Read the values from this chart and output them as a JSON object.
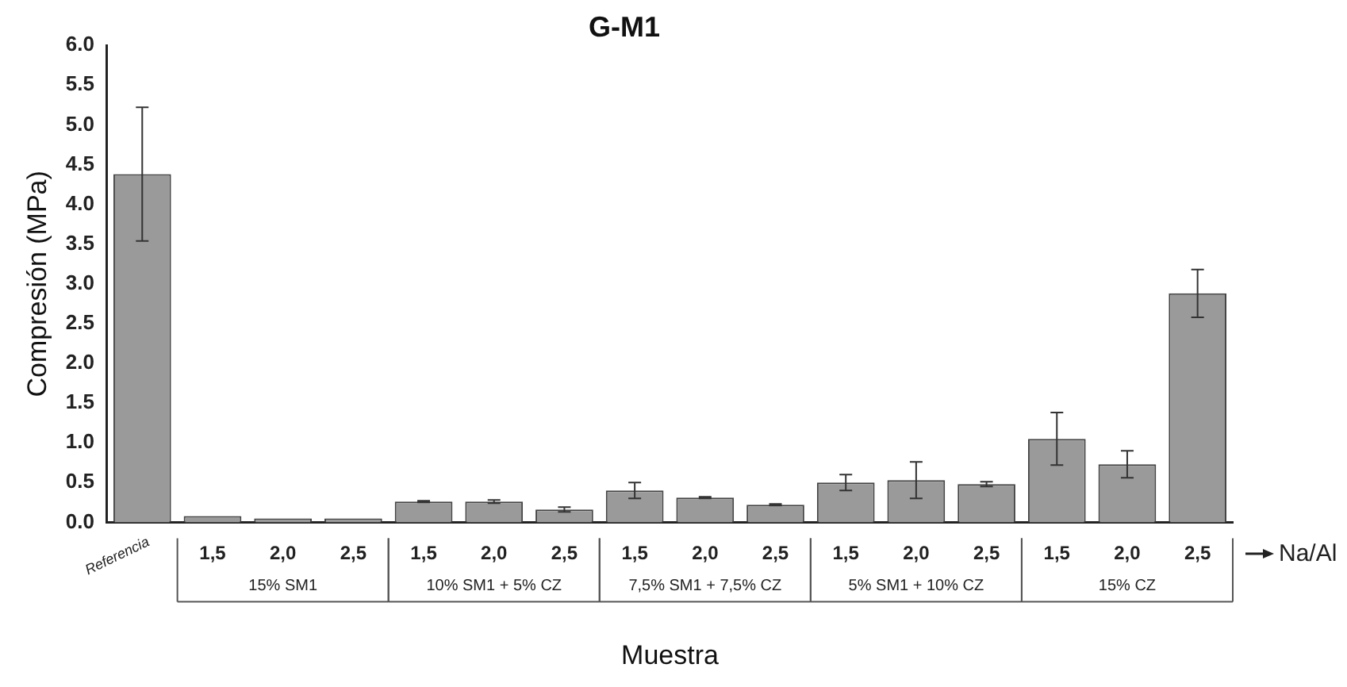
{
  "chart_data": {
    "type": "bar",
    "title": "G-M1",
    "xlabel": "Muestra",
    "ylabel": "Compresión (MPa)",
    "categories": [
      "Referencia",
      "1,5",
      "2,0",
      "2,5",
      "1,5",
      "2,0",
      "2,5",
      "1,5",
      "2,0",
      "2,5",
      "1,5",
      "2,0",
      "2,5",
      "1,5",
      "2,0",
      "2,5"
    ],
    "values": [
      4.38,
      0.08,
      0.05,
      0.05,
      0.26,
      0.26,
      0.16,
      0.4,
      0.31,
      0.22,
      0.5,
      0.53,
      0.48,
      1.05,
      0.73,
      2.88
    ],
    "errors": [
      0.84,
      null,
      null,
      null,
      0.01,
      0.02,
      0.03,
      0.1,
      0.01,
      0.01,
      0.1,
      0.23,
      0.03,
      0.33,
      0.17,
      0.3
    ],
    "color": "#9a9a9a",
    "ylim": [
      0,
      6
    ],
    "yticks": [
      {
        "value": 0,
        "label": "0.0"
      },
      {
        "value": 0.5,
        "label": "0.5"
      },
      {
        "value": 1,
        "label": "1.0"
      },
      {
        "value": 1.5,
        "label": "1.5"
      },
      {
        "value": 2,
        "label": "2.0"
      },
      {
        "value": 2.5,
        "label": "2.5"
      },
      {
        "value": 3,
        "label": "3.0"
      },
      {
        "value": 3.5,
        "label": "3.5"
      },
      {
        "value": 4,
        "label": "4.0"
      },
      {
        "value": 4.5,
        "label": "4.5"
      },
      {
        "value": 5,
        "label": "5.0"
      },
      {
        "value": 5.5,
        "label": "5.5"
      },
      {
        "value": 6,
        "label": "6.0"
      }
    ],
    "annotations": [
      "15% SM1",
      "10% SM1 + 5% CZ",
      "7,5% SM1 + 7,5% CZ",
      "5% SM1 + 10% CZ",
      "15% CZ",
      "Na/Al"
    ]
  }
}
